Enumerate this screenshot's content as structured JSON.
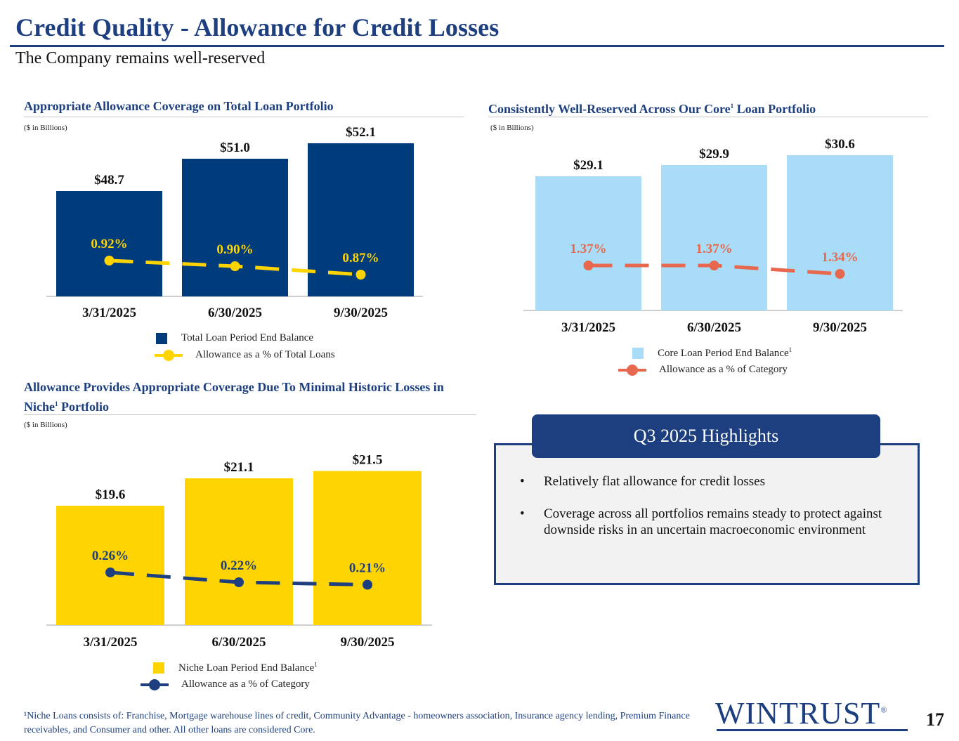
{
  "header": {
    "title": "Credit Quality - Allowance for Credit Losses",
    "subtitle": "The Company remains well-reserved"
  },
  "colors": {
    "navy": "#1d3f7f",
    "total_bar": "#003b7c",
    "total_line": "#ffd400",
    "core_bar": "#a9dcf6",
    "core_line": "#e8684f",
    "niche_bar": "#ffd400",
    "niche_line": "#1d3f7f"
  },
  "charts": {
    "total": {
      "title": "Appropriate Allowance Coverage on Total Loan Portfolio",
      "units": "($ in Billions)",
      "legend_bar": "Total Loan Period End Balance",
      "legend_line": "Allowance as a % of Total Loans"
    },
    "core": {
      "title_pre": "Consistently Well-Reserved Across Our Core",
      "title_sup": "1",
      "title_post": " Loan Portfolio",
      "units": "($ in Billions)",
      "legend_bar": "Core Loan Period End Balance",
      "legend_bar_sup": "1",
      "legend_line": "Allowance as a % of Category"
    },
    "niche": {
      "title_pre": "Allowance Provides Appropriate Coverage Due To Minimal Historic Losses in Niche",
      "title_sup": "1",
      "title_post": " Portfolio",
      "units": "($ in Billions)",
      "legend_bar": "Niche Loan Period End Balance",
      "legend_bar_sup": "1",
      "legend_line": "Allowance as a % of Category"
    }
  },
  "chart_data": [
    {
      "id": "total",
      "type": "bar",
      "categories": [
        "3/31/2025",
        "6/30/2025",
        "9/30/2025"
      ],
      "series": [
        {
          "name": "Total Loan Period End Balance",
          "kind": "bar",
          "values": [
            48.7,
            51.0,
            52.1
          ],
          "labels": [
            "$48.7",
            "$51.0",
            "$52.1"
          ]
        },
        {
          "name": "Allowance as a % of Total Loans",
          "kind": "line",
          "values": [
            0.92,
            0.9,
            0.87
          ],
          "labels": [
            "0.92%",
            "0.90%",
            "0.87%"
          ]
        }
      ]
    },
    {
      "id": "core",
      "type": "bar",
      "categories": [
        "3/31/2025",
        "6/30/2025",
        "9/30/2025"
      ],
      "series": [
        {
          "name": "Core Loan Period End Balance",
          "kind": "bar",
          "values": [
            29.1,
            29.9,
            30.6
          ],
          "labels": [
            "$29.1",
            "$29.9",
            "$30.6"
          ]
        },
        {
          "name": "Allowance as a % of Category",
          "kind": "line",
          "values": [
            1.37,
            1.37,
            1.34
          ],
          "labels": [
            "1.37%",
            "1.37%",
            "1.34%"
          ]
        }
      ]
    },
    {
      "id": "niche",
      "type": "bar",
      "categories": [
        "3/31/2025",
        "6/30/2025",
        "9/30/2025"
      ],
      "series": [
        {
          "name": "Niche Loan Period End Balance",
          "kind": "bar",
          "values": [
            19.6,
            21.1,
            21.5
          ],
          "labels": [
            "$19.6",
            "$21.1",
            "$21.5"
          ]
        },
        {
          "name": "Allowance as a % of Category",
          "kind": "line",
          "values": [
            0.26,
            0.22,
            0.21
          ],
          "labels": [
            "0.26%",
            "0.22%",
            "0.21%"
          ]
        }
      ]
    }
  ],
  "highlights": {
    "title": "Q3 2025 Highlights",
    "bullet_glyph": "•",
    "items": [
      "Relatively flat allowance for credit losses",
      "Coverage across all portfolios remains steady to protect against downside risks in an uncertain macroeconomic environment"
    ]
  },
  "footnote": {
    "marker": "¹",
    "text": "Niche Loans consists of: Franchise, Mortgage warehouse lines of credit, Community Advantage - homeowners association, Insurance agency lending, Premium Finance receivables, and Consumer and other. All other loans are considered Core."
  },
  "logo": {
    "text": "WINTRUST",
    "mark": "®"
  },
  "page_number": "17"
}
